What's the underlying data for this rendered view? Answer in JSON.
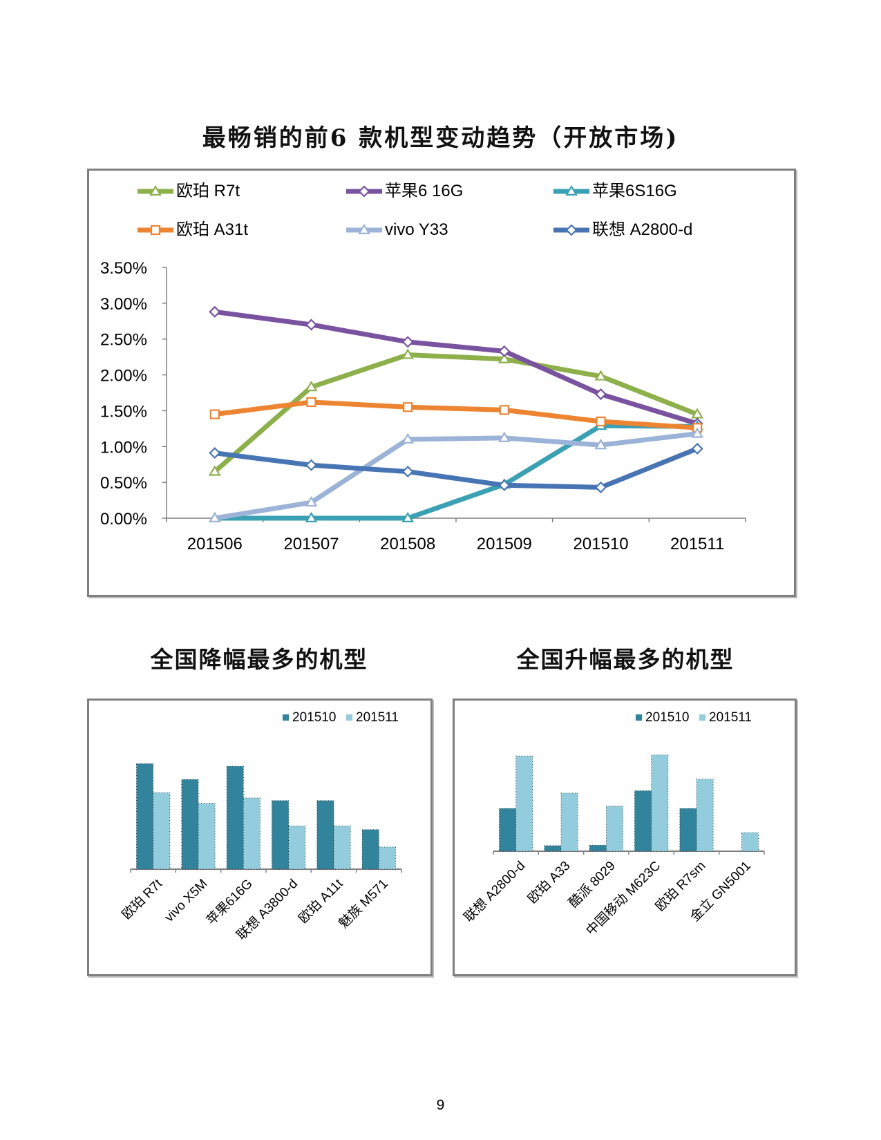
{
  "page_number": "9",
  "colors": {
    "frame": "#7f7f7f",
    "axis": "#808080",
    "bar_201510": "#31849b",
    "bar_201511": "#93cddd"
  },
  "chart_data": [
    {
      "type": "line",
      "title": "最畅销的前6 款机型变动趋势（开放市场)",
      "categories": [
        "201506",
        "201507",
        "201508",
        "201509",
        "201510",
        "201511"
      ],
      "y_tick_labels": [
        "0.00%",
        "0.50%",
        "1.00%",
        "1.50%",
        "2.00%",
        "2.50%",
        "3.00%",
        "3.50%"
      ],
      "ylim": [
        0,
        3.5
      ],
      "y_unit": "%",
      "legend_position": "top",
      "grid": false,
      "series": [
        {
          "name": "欧珀 R7t",
          "color": "#8db04a",
          "marker": "triangle",
          "values": [
            0.65,
            1.83,
            2.28,
            2.22,
            1.98,
            1.45
          ]
        },
        {
          "name": "苹果6 16G",
          "color": "#7a53a0",
          "marker": "diamond",
          "values": [
            2.88,
            2.7,
            2.46,
            2.33,
            1.73,
            1.32
          ]
        },
        {
          "name": "苹果6S16G",
          "color": "#3aa0b3",
          "marker": "triangle",
          "values": [
            0.0,
            0.0,
            0.0,
            0.47,
            1.29,
            1.28
          ]
        },
        {
          "name": "欧珀 A31t",
          "color": "#ec8431",
          "marker": "square",
          "values": [
            1.45,
            1.62,
            1.55,
            1.51,
            1.35,
            1.26
          ]
        },
        {
          "name": "vivo Y33",
          "color": "#9cb3d8",
          "marker": "triangle",
          "values": [
            0.0,
            0.22,
            1.1,
            1.12,
            1.02,
            1.18
          ]
        },
        {
          "name": "联想 A2800-d",
          "color": "#4774b3",
          "marker": "diamond",
          "values": [
            0.91,
            0.74,
            0.65,
            0.46,
            0.43,
            0.97
          ]
        }
      ]
    },
    {
      "type": "bar",
      "title": "全国降幅最多的机型",
      "categories": [
        "欧珀 R7t",
        "vivo X5M",
        "苹果616G",
        "联想 A3800-d",
        "欧珀 A11t",
        "魅族 M571"
      ],
      "ylim": [
        0,
        2.2
      ],
      "legend_position": "top-right",
      "series": [
        {
          "name": "201510",
          "values": [
            2.0,
            1.7,
            1.95,
            1.3,
            1.3,
            0.75
          ]
        },
        {
          "name": "201511",
          "values": [
            1.45,
            1.25,
            1.35,
            0.82,
            0.82,
            0.42
          ]
        }
      ]
    },
    {
      "type": "bar",
      "title": "全国升幅最多的机型",
      "categories": [
        "联想 A2800-d",
        "欧珀 A33",
        "酷派 8029",
        "中国移动 M623C",
        "欧珀 R7sm",
        "金立 GN5001"
      ],
      "ylim": [
        0,
        2.2
      ],
      "legend_position": "top-right",
      "series": [
        {
          "name": "201510",
          "values": [
            0.92,
            0.12,
            0.13,
            1.3,
            0.92,
            0.0
          ]
        },
        {
          "name": "201511",
          "values": [
            2.05,
            1.25,
            0.97,
            2.07,
            1.55,
            0.4
          ]
        }
      ]
    }
  ]
}
